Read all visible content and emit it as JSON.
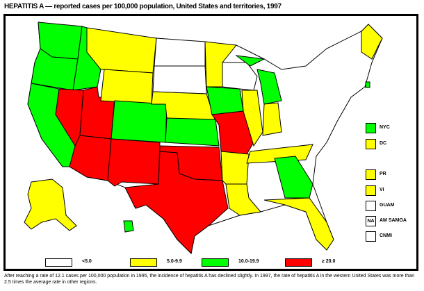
{
  "title": "HEPATITIS A — reported cases per 100,000 population, United States and territories, 1997",
  "colors": {
    "lt5": "#ffffff",
    "5to9": "#ffff00",
    "10to19": "#00ff00",
    "ge20": "#ff0000"
  },
  "legend": [
    {
      "label": "<5.0",
      "color": "#ffffff"
    },
    {
      "label": "5.0-9.9",
      "color": "#ffff00"
    },
    {
      "label": "10.0-19.9",
      "color": "#00ff00"
    },
    {
      "label": "≥ 20.0",
      "color": "#ff0000"
    }
  ],
  "territories": [
    {
      "label": "NYC",
      "color": "#00ff00",
      "mark": ""
    },
    {
      "label": "DC",
      "color": "#ffff00",
      "mark": ""
    },
    {
      "label": "PR",
      "color": "#ffff00",
      "mark": ""
    },
    {
      "label": "VI",
      "color": "#ffff00",
      "mark": ""
    },
    {
      "label": "GUAM",
      "color": "#ffffff",
      "mark": ""
    },
    {
      "label": "AM SAMOA",
      "color": "#ffffff",
      "mark": "NA"
    },
    {
      "label": "CNMI",
      "color": "#ffffff",
      "mark": ""
    }
  ],
  "states": {
    "WA": "10.0-19.9",
    "OR": "10.0-19.9",
    "CA": "10.0-19.9",
    "ID": "10.0-19.9",
    "NV": "≥ 20.0",
    "UT": "≥ 20.0",
    "AZ": "≥ 20.0",
    "MT": "5.0-9.9",
    "WY": "5.0-9.9",
    "CO": "10.0-19.9",
    "NM": "≥ 20.0",
    "ND": "<5.0",
    "SD": "<5.0",
    "NE": "5.0-9.9",
    "KS": "10.0-19.9",
    "OK": "≥ 20.0",
    "TX": "≥ 20.0",
    "MN": "5.0-9.9",
    "IA": "10.0-19.9",
    "MO": "≥ 20.0",
    "AR": "5.0-9.9",
    "LA": "5.0-9.9",
    "WI": "<5.0",
    "IL": "5.0-9.9",
    "MI": "10.0-19.9",
    "IN": "5.0-9.9",
    "TN": "5.0-9.9",
    "GA": "10.0-19.9",
    "FL": "5.0-9.9",
    "ME": "5.0-9.9",
    "RI": "10.0-19.9",
    "AK": "5.0-9.9",
    "HI": "10.0-19.9"
  },
  "footnote": "After reaching a rate of 12.1 cases per 100,000 population in 1995, the incidence of hepatitis A has declined slightly. In 1997, the rate of hepatitis A in the western United States was more than 2.5 times the average rate in other regions."
}
